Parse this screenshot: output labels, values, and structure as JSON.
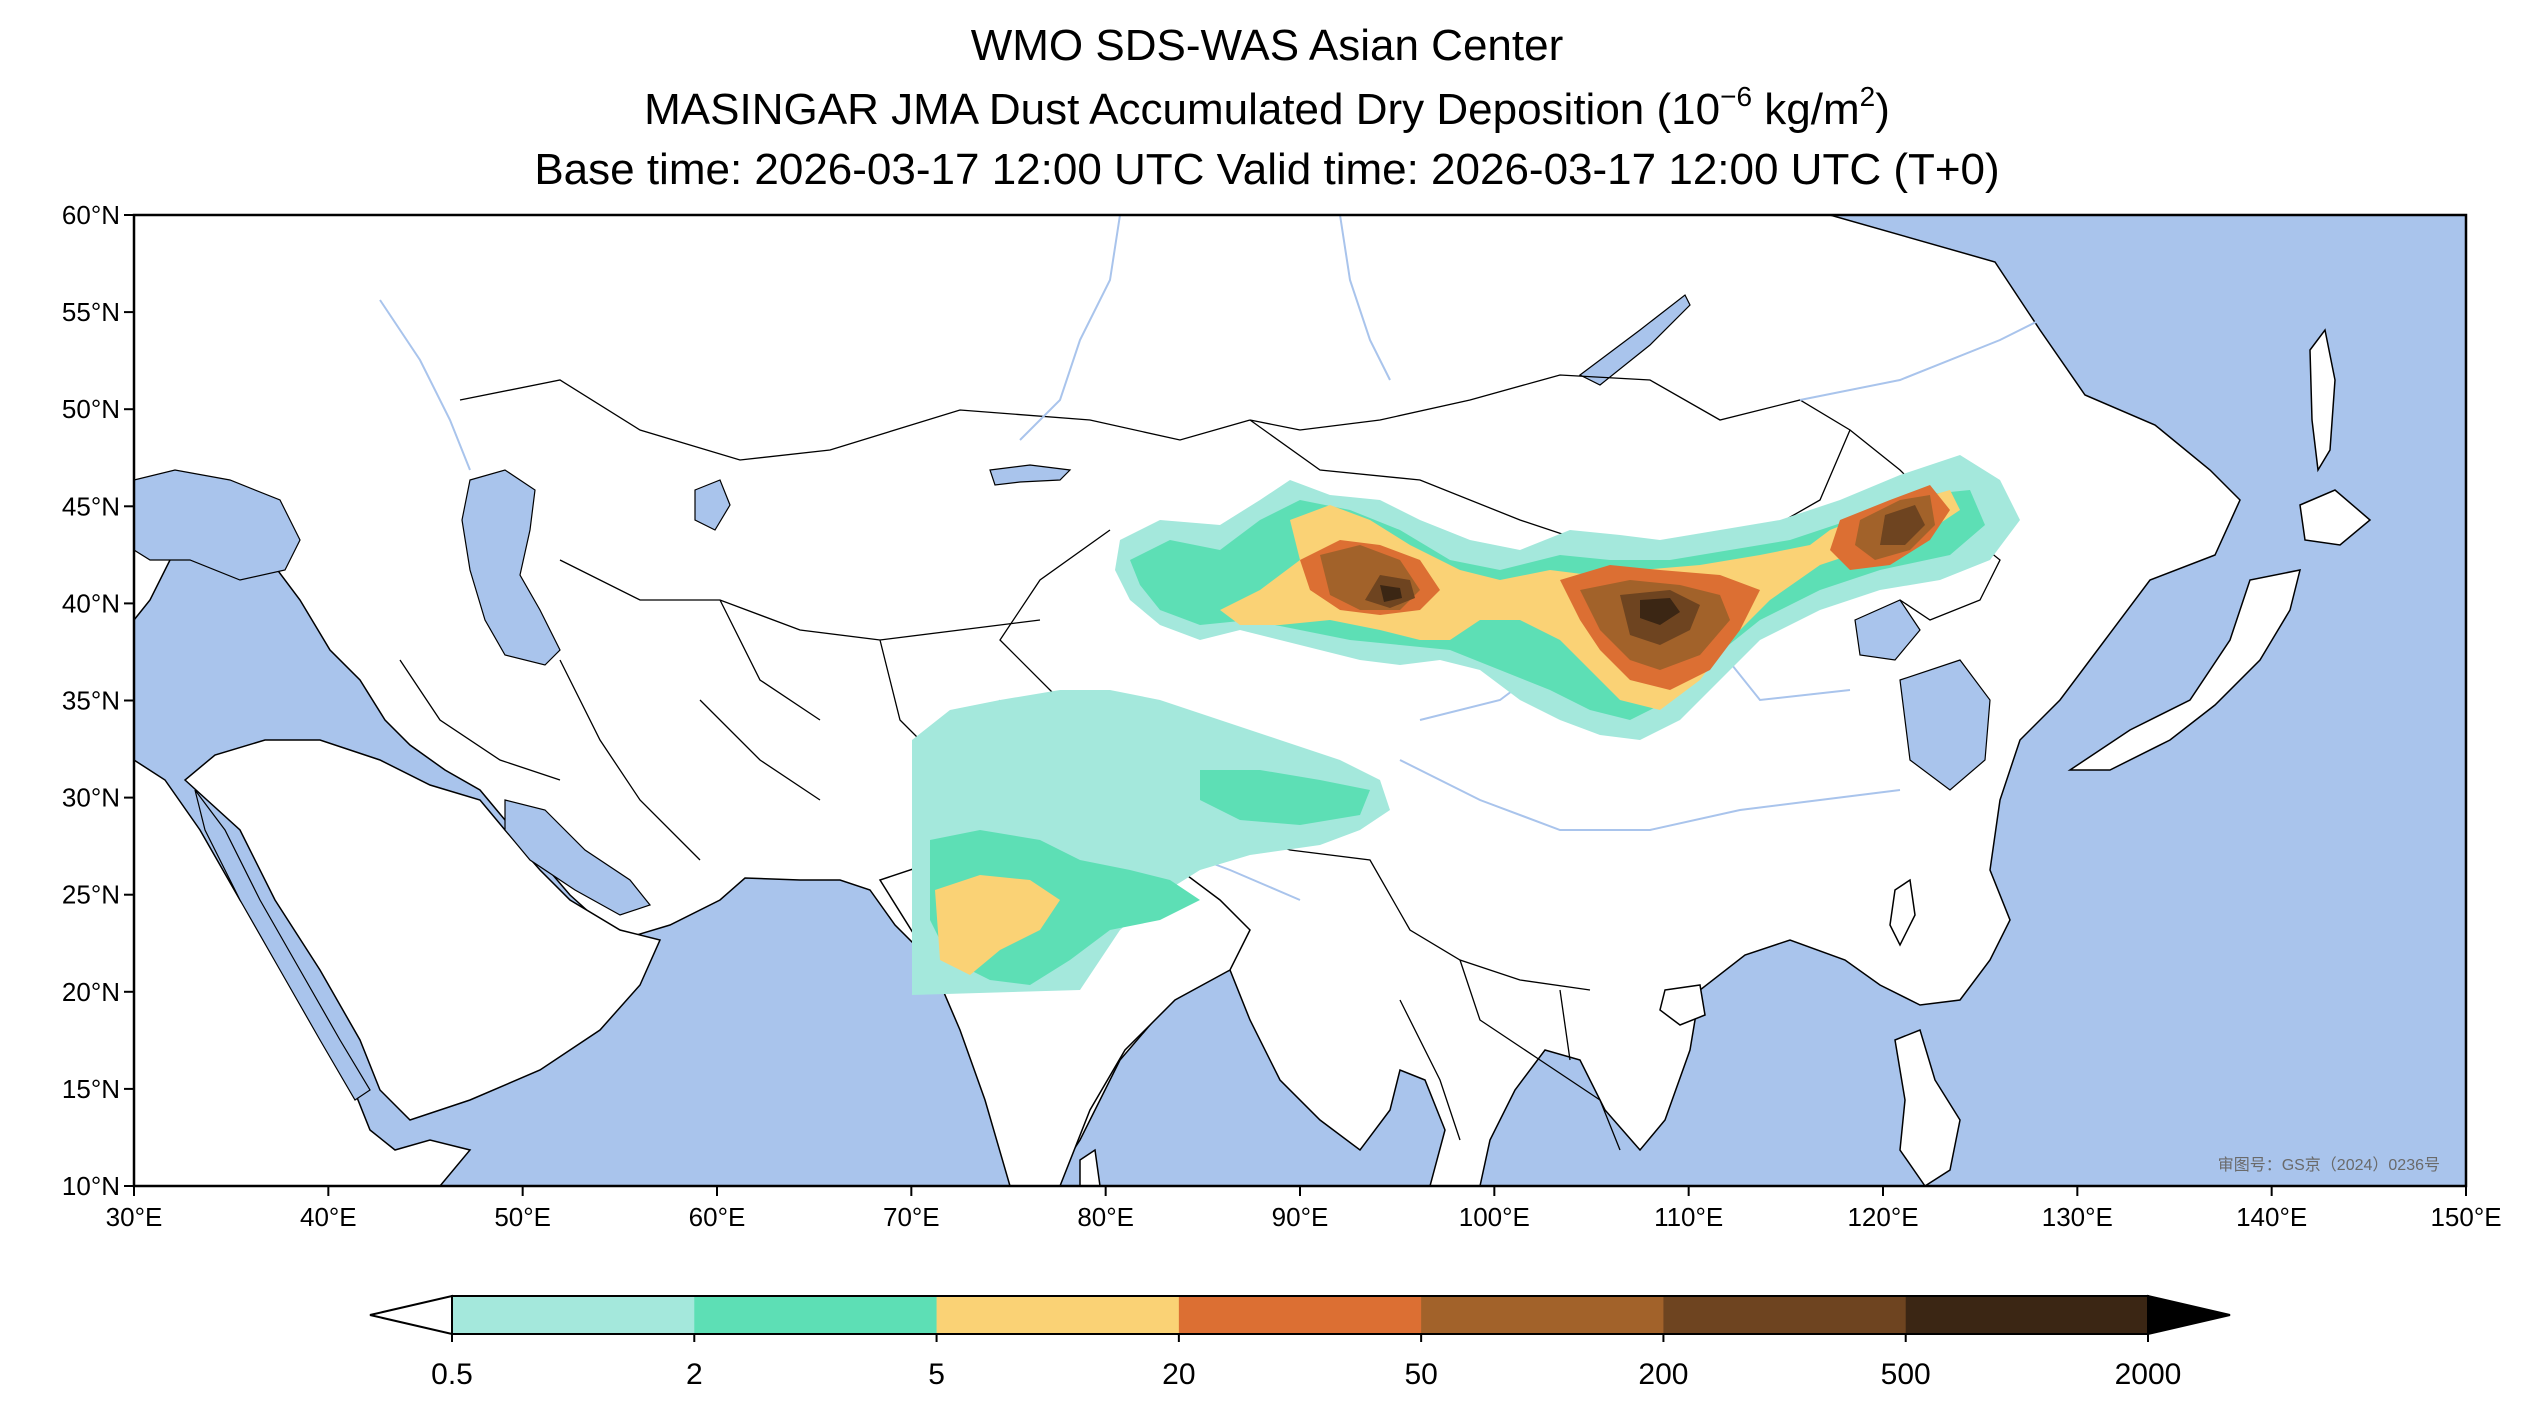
{
  "title": {
    "line1": "WMO SDS-WAS Asian Center",
    "line2_main": "MASINGAR JMA Dust Accumulated Dry Deposition (10",
    "line2_exp1": "−6",
    "line2_mid": " kg/m",
    "line2_exp2": "2",
    "line2_end": ")",
    "line3": "Base time: 2026-03-17 12:00 UTC Valid time: 2026-03-17 12:00 UTC (T+0)"
  },
  "map": {
    "lon_range": [
      30,
      150
    ],
    "lat_range": [
      10,
      60
    ],
    "lon_ticks": [
      "30°E",
      "40°E",
      "50°E",
      "60°E",
      "70°E",
      "80°E",
      "90°E",
      "100°E",
      "110°E",
      "120°E",
      "130°E",
      "140°E",
      "150°E"
    ],
    "lat_ticks": [
      "60°N",
      "55°N",
      "50°N",
      "45°N",
      "40°N",
      "35°N",
      "30°N",
      "25°N",
      "20°N",
      "15°N",
      "10°N"
    ],
    "ocean_color": "#a9c4ec",
    "land_color": "#ffffff",
    "approval_note": "审图号：GS京（2024）0236号"
  },
  "colorbar": {
    "labels": [
      "0.5",
      "2",
      "5",
      "20",
      "50",
      "200",
      "500",
      "2000"
    ],
    "colors": [
      "#a4e8dc",
      "#5ddfb5",
      "#fad275",
      "#dc6f33",
      "#a2622a",
      "#6e4420",
      "#3b2614"
    ],
    "extend": "both"
  }
}
